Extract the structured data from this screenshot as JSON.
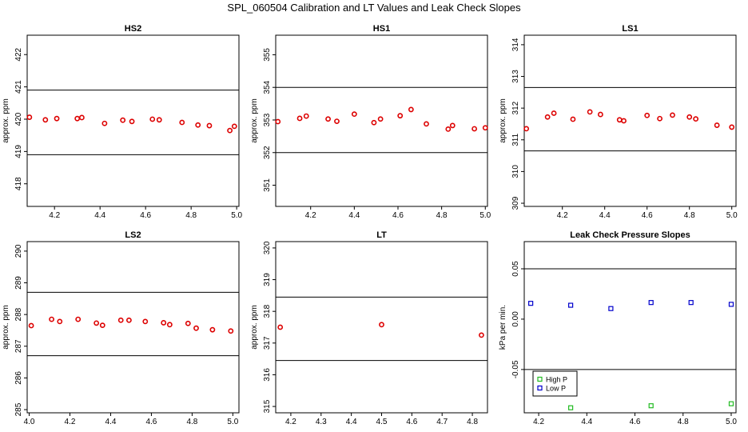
{
  "title": "SPL_060504  Calibration and LT Values and Leak Check Slopes",
  "colors": {
    "red": "#dd0000",
    "green": "#22bb22",
    "blue": "#0000cc",
    "axis": "#000000"
  },
  "chart_data": [
    {
      "type": "scatter",
      "title": "HS2",
      "ylabel": "approx. ppm",
      "xlim": [
        4.08,
        5.01
      ],
      "ylim": [
        417.3,
        422.6
      ],
      "xticks": [
        4.2,
        4.4,
        4.6,
        4.8,
        5.0
      ],
      "xtick_labels": [
        "4.2",
        "4.4",
        "4.6",
        "4.8",
        "5.0"
      ],
      "yticks": [
        418,
        419,
        420,
        421,
        422
      ],
      "ytick_labels": [
        "418",
        "419",
        "420",
        "421",
        "422"
      ],
      "hlines": [
        418.9,
        420.9
      ],
      "series": [
        {
          "color": "red",
          "points": [
            [
              4.09,
              420.06
            ],
            [
              4.16,
              419.98
            ],
            [
              4.21,
              420.02
            ],
            [
              4.3,
              420.02
            ],
            [
              4.32,
              420.05
            ],
            [
              4.42,
              419.87
            ],
            [
              4.5,
              419.97
            ],
            [
              4.54,
              419.93
            ],
            [
              4.63,
              420.0
            ],
            [
              4.66,
              419.98
            ],
            [
              4.76,
              419.9
            ],
            [
              4.83,
              419.82
            ],
            [
              4.88,
              419.8
            ],
            [
              4.97,
              419.65
            ],
            [
              4.99,
              419.78
            ]
          ]
        }
      ]
    },
    {
      "type": "scatter",
      "title": "HS1",
      "ylabel": "approx. ppm",
      "xlim": [
        4.04,
        5.01
      ],
      "ylim": [
        350.35,
        355.6
      ],
      "xticks": [
        4.2,
        4.4,
        4.6,
        4.8,
        5.0
      ],
      "xtick_labels": [
        "4.2",
        "4.4",
        "4.6",
        "4.8",
        "5.0"
      ],
      "yticks": [
        351,
        352,
        353,
        354,
        355
      ],
      "ytick_labels": [
        "351",
        "352",
        "353",
        "354",
        "355"
      ],
      "hlines": [
        352.0,
        354.0
      ],
      "series": [
        {
          "color": "red",
          "points": [
            [
              4.05,
              352.95
            ],
            [
              4.15,
              353.05
            ],
            [
              4.18,
              353.12
            ],
            [
              4.28,
              353.03
            ],
            [
              4.32,
              352.96
            ],
            [
              4.4,
              353.18
            ],
            [
              4.49,
              352.92
            ],
            [
              4.52,
              353.03
            ],
            [
              4.61,
              353.13
            ],
            [
              4.66,
              353.32
            ],
            [
              4.73,
              352.88
            ],
            [
              4.83,
              352.72
            ],
            [
              4.85,
              352.83
            ],
            [
              4.95,
              352.73
            ],
            [
              5.0,
              352.76
            ]
          ]
        }
      ]
    },
    {
      "type": "scatter",
      "title": "LS1",
      "ylabel": "approx. ppm",
      "xlim": [
        4.02,
        5.02
      ],
      "ylim": [
        308.9,
        314.3
      ],
      "xticks": [
        4.2,
        4.4,
        4.6,
        4.8,
        5.0
      ],
      "xtick_labels": [
        "4.2",
        "4.4",
        "4.6",
        "4.8",
        "5.0"
      ],
      "yticks": [
        309,
        310,
        311,
        312,
        313,
        314
      ],
      "ytick_labels": [
        "309",
        "310",
        "311",
        "312",
        "313",
        "314"
      ],
      "hlines": [
        310.65,
        312.65
      ],
      "series": [
        {
          "color": "red",
          "points": [
            [
              4.03,
              311.35
            ],
            [
              4.13,
              311.72
            ],
            [
              4.16,
              311.84
            ],
            [
              4.25,
              311.65
            ],
            [
              4.33,
              311.88
            ],
            [
              4.38,
              311.8
            ],
            [
              4.47,
              311.63
            ],
            [
              4.49,
              311.6
            ],
            [
              4.6,
              311.77
            ],
            [
              4.66,
              311.67
            ],
            [
              4.72,
              311.78
            ],
            [
              4.8,
              311.72
            ],
            [
              4.83,
              311.66
            ],
            [
              4.93,
              311.46
            ],
            [
              5.0,
              311.4
            ]
          ]
        }
      ]
    },
    {
      "type": "scatter",
      "title": "LS2",
      "ylabel": "approx. ppm",
      "xlim": [
        3.99,
        5.03
      ],
      "ylim": [
        284.9,
        290.3
      ],
      "xticks": [
        4.0,
        4.2,
        4.4,
        4.6,
        4.8,
        5.0
      ],
      "xtick_labels": [
        "4.0",
        "4.2",
        "4.4",
        "4.6",
        "4.8",
        "5.0"
      ],
      "yticks": [
        285,
        286,
        287,
        288,
        289,
        290
      ],
      "ytick_labels": [
        "285",
        "286",
        "287",
        "288",
        "289",
        "290"
      ],
      "hlines": [
        286.7,
        288.7
      ],
      "series": [
        {
          "color": "red",
          "points": [
            [
              4.01,
              287.65
            ],
            [
              4.11,
              287.85
            ],
            [
              4.15,
              287.78
            ],
            [
              4.24,
              287.85
            ],
            [
              4.33,
              287.73
            ],
            [
              4.36,
              287.66
            ],
            [
              4.45,
              287.82
            ],
            [
              4.49,
              287.82
            ],
            [
              4.57,
              287.78
            ],
            [
              4.66,
              287.74
            ],
            [
              4.69,
              287.68
            ],
            [
              4.78,
              287.72
            ],
            [
              4.82,
              287.57
            ],
            [
              4.9,
              287.52
            ],
            [
              4.99,
              287.48
            ]
          ]
        }
      ]
    },
    {
      "type": "scatter",
      "title": "LT",
      "ylabel": "approx. ppm",
      "xlim": [
        4.15,
        4.85
      ],
      "ylim": [
        314.8,
        320.2
      ],
      "xticks": [
        4.2,
        4.3,
        4.4,
        4.5,
        4.6,
        4.7,
        4.8
      ],
      "xtick_labels": [
        "4.2",
        "4.3",
        "4.4",
        "4.5",
        "4.6",
        "4.7",
        "4.8"
      ],
      "yticks": [
        315,
        316,
        317,
        318,
        319,
        320
      ],
      "ytick_labels": [
        "315",
        "316",
        "317",
        "318",
        "319",
        "320"
      ],
      "hlines": [
        316.45,
        318.45
      ],
      "series": [
        {
          "color": "red",
          "points": [
            [
              4.165,
              317.5
            ],
            [
              4.5,
              317.58
            ],
            [
              4.83,
              317.25
            ]
          ]
        }
      ]
    },
    {
      "type": "scatter",
      "title": "Leak Check Pressure Slopes",
      "ylabel": "kPa per min.",
      "xlim": [
        4.14,
        5.02
      ],
      "ylim": [
        -0.093,
        0.077
      ],
      "xticks": [
        4.2,
        4.4,
        4.6,
        4.8,
        5.0
      ],
      "xtick_labels": [
        "4.2",
        "4.4",
        "4.6",
        "4.8",
        "5.0"
      ],
      "yticks": [
        -0.05,
        0.0,
        0.05
      ],
      "ytick_labels": [
        "-0.05",
        "0.00",
        "0.05"
      ],
      "hlines": [
        -0.05,
        0.05
      ],
      "legend": {
        "placement": "bottom-left",
        "entries": [
          {
            "label": "High P",
            "color": "green"
          },
          {
            "label": "Low P",
            "color": "blue"
          }
        ]
      },
      "series": [
        {
          "name": "High P",
          "color": "green",
          "points": [
            [
              4.333,
              -0.088
            ],
            [
              4.667,
              -0.086
            ],
            [
              5.0,
              -0.084
            ]
          ]
        },
        {
          "name": "Low P",
          "color": "blue",
          "points": [
            [
              4.167,
              0.0157
            ],
            [
              4.333,
              0.0138
            ],
            [
              4.5,
              0.0105
            ],
            [
              4.667,
              0.0165
            ],
            [
              4.833,
              0.0165
            ],
            [
              5.0,
              0.0147
            ]
          ]
        }
      ]
    }
  ]
}
